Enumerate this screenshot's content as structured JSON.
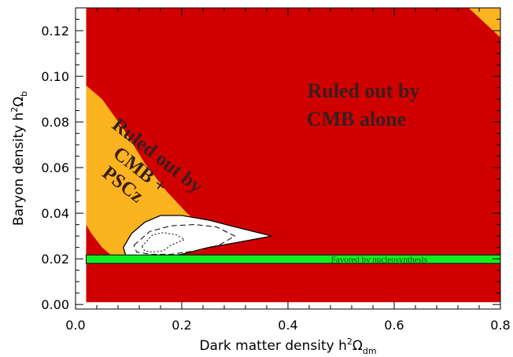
{
  "chart_data": {
    "type": "area",
    "xlabel": {
      "main": "Dark matter density h",
      "sup": "2",
      "omega": "Ω",
      "sub": "dm"
    },
    "ylabel": {
      "main": "Baryon density h",
      "sup": "2",
      "omega": "Ω",
      "sub": "b"
    },
    "xlim": [
      0.0,
      0.8
    ],
    "ylim": [
      -0.002,
      0.13
    ],
    "x_ticks": [
      {
        "value": 0.0,
        "label": "0.0"
      },
      {
        "value": 0.2,
        "label": "0.2"
      },
      {
        "value": 0.4,
        "label": "0.4"
      },
      {
        "value": 0.6,
        "label": "0.6"
      },
      {
        "value": 0.8,
        "label": "0.8"
      }
    ],
    "y_ticks": [
      {
        "value": 0.0,
        "label": "0.00"
      },
      {
        "value": 0.02,
        "label": "0.02"
      },
      {
        "value": 0.04,
        "label": "0.04"
      },
      {
        "value": 0.06,
        "label": "0.06"
      },
      {
        "value": 0.08,
        "label": "0.08"
      },
      {
        "value": 0.1,
        "label": "0.10"
      },
      {
        "value": 0.12,
        "label": "0.12"
      }
    ],
    "grid": false,
    "colors": {
      "cmb_excluded": "#d10000",
      "pscz_excluded": "#fbb320",
      "allowed": "#ffffff",
      "nucleosynthesis": "#11ee22"
    },
    "regions": {
      "cmb_excluded": {
        "label_lines": [
          "Ruled out by",
          "CMB alone"
        ],
        "x_range": [
          0.02,
          0.8
        ],
        "y_range": [
          0.001,
          0.13
        ]
      },
      "pscz_excluded": {
        "label_lines": [
          "Ruled out by",
          "CMB +",
          "PSCz"
        ],
        "boundary": [
          [
            0.02,
            0.096
          ],
          [
            0.05,
            0.09
          ],
          [
            0.09,
            0.077
          ],
          [
            0.13,
            0.062
          ],
          [
            0.17,
            0.05
          ],
          [
            0.21,
            0.04
          ],
          [
            0.235,
            0.035
          ],
          [
            0.25,
            0.029
          ],
          [
            0.24,
            0.024
          ],
          [
            0.2,
            0.022
          ],
          [
            0.15,
            0.021
          ],
          [
            0.1,
            0.02
          ],
          [
            0.07,
            0.021
          ],
          [
            0.05,
            0.025
          ],
          [
            0.03,
            0.031
          ],
          [
            0.02,
            0.035
          ]
        ],
        "corner": [
          [
            0.74,
            0.13
          ],
          [
            0.8,
            0.13
          ],
          [
            0.8,
            0.117
          ]
        ]
      },
      "allowed_contour": {
        "boundary": [
          [
            0.09,
            0.025
          ],
          [
            0.105,
            0.031
          ],
          [
            0.13,
            0.036
          ],
          [
            0.16,
            0.039
          ],
          [
            0.2,
            0.039
          ],
          [
            0.25,
            0.037
          ],
          [
            0.3,
            0.034
          ],
          [
            0.37,
            0.03
          ],
          [
            0.3,
            0.027
          ],
          [
            0.25,
            0.025
          ],
          [
            0.2,
            0.022
          ],
          [
            0.15,
            0.02
          ],
          [
            0.11,
            0.02
          ],
          [
            0.095,
            0.021
          ]
        ]
      },
      "dashed_contour": {
        "boundary": [
          [
            0.11,
            0.026
          ],
          [
            0.14,
            0.032
          ],
          [
            0.18,
            0.0345
          ],
          [
            0.225,
            0.035
          ],
          [
            0.265,
            0.034
          ],
          [
            0.3,
            0.03
          ],
          [
            0.27,
            0.026
          ],
          [
            0.225,
            0.0235
          ],
          [
            0.18,
            0.022
          ],
          [
            0.14,
            0.022
          ],
          [
            0.115,
            0.023
          ]
        ]
      },
      "dotted_contour": {
        "boundary": [
          [
            0.125,
            0.0255
          ],
          [
            0.145,
            0.0305
          ],
          [
            0.165,
            0.0315
          ],
          [
            0.19,
            0.0305
          ],
          [
            0.205,
            0.0285
          ],
          [
            0.18,
            0.026
          ],
          [
            0.165,
            0.0235
          ],
          [
            0.145,
            0.023
          ],
          [
            0.13,
            0.0235
          ]
        ]
      },
      "nucleosynthesis": {
        "label": "Favored by nucleosynthesis",
        "x_range": [
          0.02,
          0.8
        ],
        "y_range": [
          0.018,
          0.0217
        ]
      }
    }
  }
}
